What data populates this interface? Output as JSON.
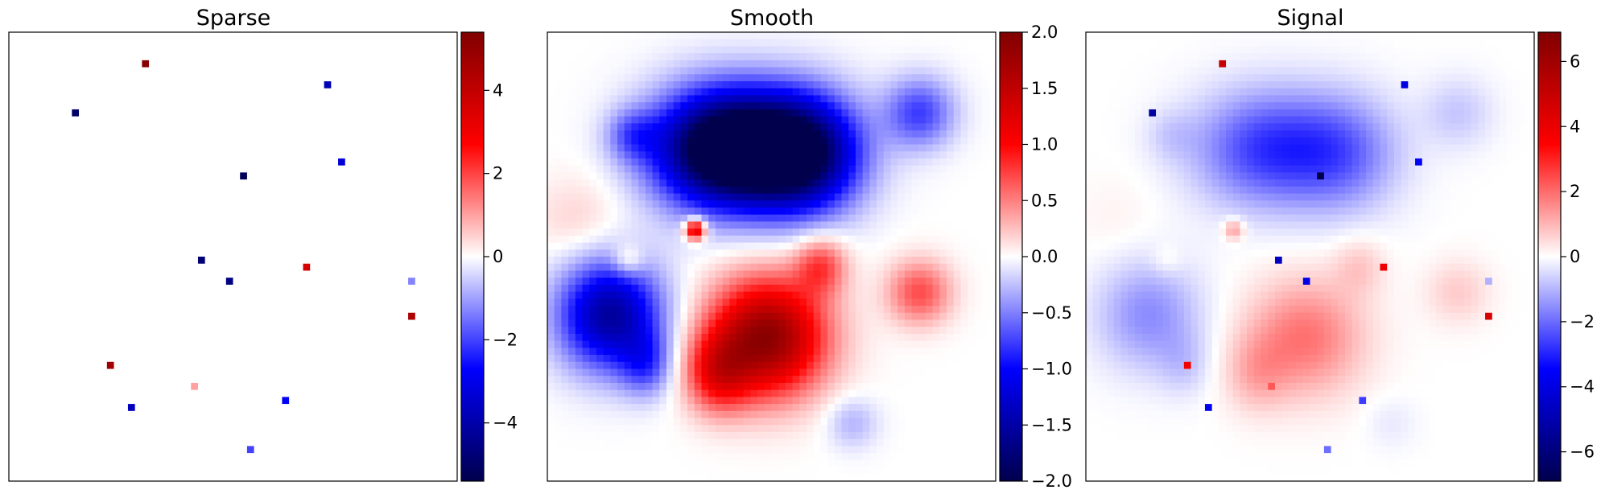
{
  "chart_data": [
    {
      "type": "heatmap",
      "title": "Sparse",
      "colormap": "seismic",
      "colorbar": {
        "vmin": -5.4,
        "vmax": 5.4,
        "ticks": [
          -4,
          -2,
          0,
          2,
          4
        ],
        "tick_labels": [
          "−4",
          "−2",
          "0",
          "2",
          "4"
        ]
      },
      "grid": false,
      "spikes": [
        {
          "x": 0.3,
          "y": 0.93,
          "value": 5.2
        },
        {
          "x": 0.71,
          "y": 0.89,
          "value": -3.8
        },
        {
          "x": 0.15,
          "y": 0.82,
          "value": -5.0
        },
        {
          "x": 0.74,
          "y": 0.71,
          "value": -3.3
        },
        {
          "x": 0.52,
          "y": 0.68,
          "value": -5.2
        },
        {
          "x": 0.43,
          "y": 0.49,
          "value": -4.8
        },
        {
          "x": 0.66,
          "y": 0.48,
          "value": 3.6
        },
        {
          "x": 0.49,
          "y": 0.45,
          "value": -4.6
        },
        {
          "x": 0.9,
          "y": 0.45,
          "value": -1.3
        },
        {
          "x": 0.9,
          "y": 0.37,
          "value": 4.4
        },
        {
          "x": 0.22,
          "y": 0.26,
          "value": 4.7
        },
        {
          "x": 0.41,
          "y": 0.21,
          "value": 1.0
        },
        {
          "x": 0.62,
          "y": 0.18,
          "value": -2.8
        },
        {
          "x": 0.27,
          "y": 0.17,
          "value": -3.7
        },
        {
          "x": 0.54,
          "y": 0.07,
          "value": -2.0
        }
      ]
    },
    {
      "type": "heatmap",
      "title": "Smooth",
      "colormap": "seismic",
      "colorbar": {
        "vmin": -2.0,
        "vmax": 2.0,
        "ticks": [
          -2.0,
          -1.5,
          -1.0,
          -0.5,
          0.0,
          0.5,
          1.0,
          1.5,
          2.0
        ],
        "tick_labels": [
          "−2.0",
          "−1.5",
          "−1.0",
          "−0.5",
          "0.0",
          "0.5",
          "1.0",
          "1.5",
          "2.0"
        ]
      },
      "grid": false,
      "blobs": [
        {
          "x": 0.4,
          "y": 0.74,
          "sx": 0.11,
          "sy": 0.09,
          "amp": -2.6
        },
        {
          "x": 0.57,
          "y": 0.73,
          "sx": 0.09,
          "sy": 0.09,
          "amp": -1.9
        },
        {
          "x": 0.83,
          "y": 0.82,
          "sx": 0.055,
          "sy": 0.055,
          "amp": -0.75
        },
        {
          "x": 0.19,
          "y": 0.77,
          "sx": 0.04,
          "sy": 0.04,
          "amp": -0.5
        },
        {
          "x": 0.14,
          "y": 0.37,
          "sx": 0.08,
          "sy": 0.085,
          "amp": -1.55
        },
        {
          "x": 0.22,
          "y": 0.26,
          "sx": 0.04,
          "sy": 0.05,
          "amp": -0.6
        },
        {
          "x": 0.49,
          "y": 0.32,
          "sx": 0.09,
          "sy": 0.09,
          "amp": 1.9
        },
        {
          "x": 0.38,
          "y": 0.24,
          "sx": 0.05,
          "sy": 0.06,
          "amp": 0.9
        },
        {
          "x": 0.61,
          "y": 0.48,
          "sx": 0.04,
          "sy": 0.045,
          "amp": 0.7
        },
        {
          "x": 0.83,
          "y": 0.42,
          "sx": 0.05,
          "sy": 0.05,
          "amp": 0.7
        },
        {
          "x": 0.07,
          "y": 0.58,
          "sx": 0.07,
          "sy": 0.07,
          "amp": 0.18
        },
        {
          "x": 0.68,
          "y": 0.13,
          "sx": 0.04,
          "sy": 0.04,
          "amp": -0.3
        },
        {
          "x": 0.33,
          "y": 0.56,
          "sx": 0.016,
          "sy": 0.016,
          "amp": 1.5
        },
        {
          "x": 0.18,
          "y": 0.49,
          "sx": 0.025,
          "sy": 0.025,
          "amp": 0.4
        }
      ]
    },
    {
      "type": "heatmap",
      "title": "Signal",
      "colormap": "seismic",
      "colorbar": {
        "vmin": -6.9,
        "vmax": 6.9,
        "ticks": [
          -6,
          -4,
          -2,
          0,
          2,
          4,
          6
        ],
        "tick_labels": [
          "−6",
          "−4",
          "−2",
          "0",
          "2",
          "4",
          "6"
        ]
      },
      "grid": false,
      "note_values": "sum of Sparse and Smooth"
    }
  ]
}
